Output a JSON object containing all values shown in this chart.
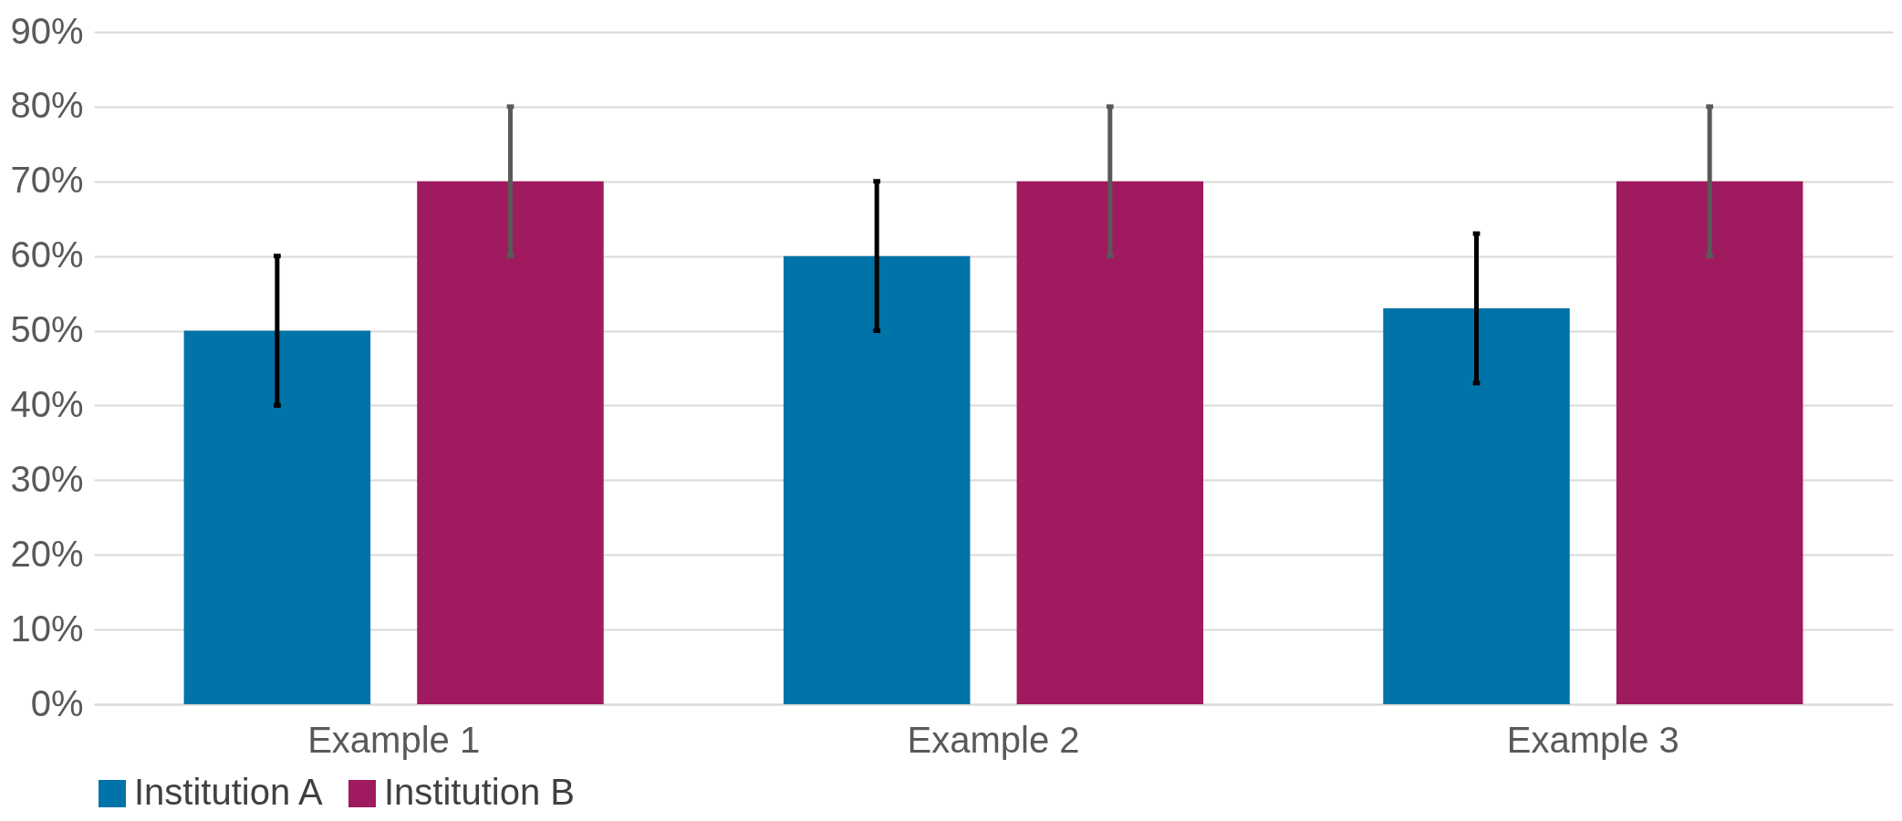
{
  "chart_data": {
    "type": "bar",
    "categories": [
      "Example 1",
      "Example 2",
      "Example 3"
    ],
    "series": [
      {
        "name": "Institution A",
        "color": "#0073a8",
        "values": [
          50,
          60,
          53
        ],
        "errors": [
          10,
          10,
          10
        ]
      },
      {
        "name": "Institution B",
        "color": "#a01a5f",
        "values": [
          70,
          70,
          70
        ],
        "errors": [
          10,
          10,
          10
        ]
      }
    ],
    "ylim": [
      0,
      90
    ],
    "yticks": [
      {
        "value": 0,
        "label": "0%"
      },
      {
        "value": 10,
        "label": "10%"
      },
      {
        "value": 20,
        "label": "20%"
      },
      {
        "value": 30,
        "label": "30%"
      },
      {
        "value": 40,
        "label": "40%"
      },
      {
        "value": 50,
        "label": "50%"
      },
      {
        "value": 60,
        "label": "60%"
      },
      {
        "value": 70,
        "label": "70%"
      },
      {
        "value": 80,
        "label": "80%"
      },
      {
        "value": 90,
        "label": "90%"
      }
    ],
    "grid": "y",
    "legend": "bottom"
  }
}
